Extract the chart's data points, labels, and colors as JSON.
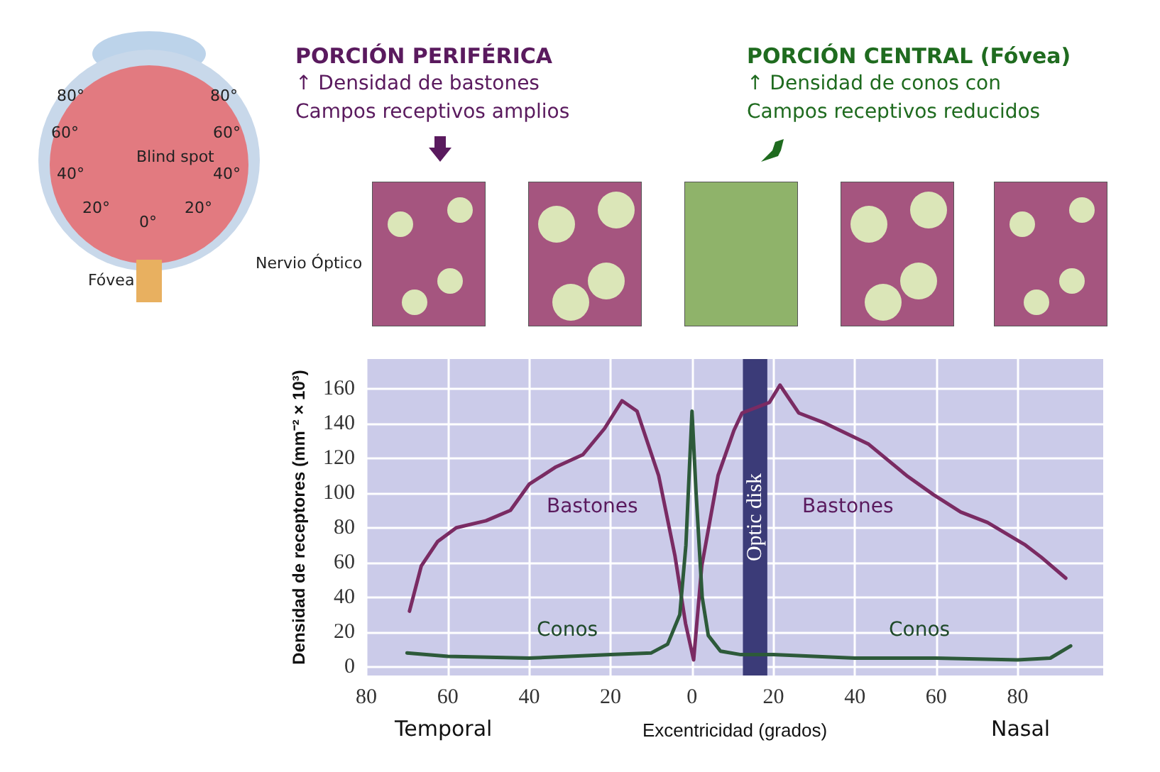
{
  "chart_data": {
    "type": "line",
    "xlabel": "Excentricidad (grados)",
    "ylabel": "Densidad de receptores (mm⁻² × 10³)",
    "xlim": [
      -80,
      101
    ],
    "ylim": [
      -5,
      177
    ],
    "xticks": [
      {
        "value": -80,
        "label": "80"
      },
      {
        "value": -60,
        "label": "60"
      },
      {
        "value": -40,
        "label": "40"
      },
      {
        "value": -20,
        "label": "20"
      },
      0,
      20,
      40,
      60,
      80
    ],
    "yticks": [
      0,
      20,
      40,
      60,
      80,
      100,
      120,
      140,
      160
    ],
    "grid": true,
    "marker": "none",
    "line_style": "solid",
    "series": [
      {
        "color": "#7a2b63",
        "x": [
          -69.4,
          -66.5,
          -62.5,
          -57.9,
          -50.6,
          -44.6,
          -40,
          -33.4,
          -26.8,
          -21.5,
          -17.2,
          -13.5,
          -8.2,
          -4.2,
          -1.6,
          0.4,
          2.4,
          6.4,
          10.3,
          12.3,
          19,
          21.6,
          26.2,
          32.8,
          43.4,
          52.7,
          59.3,
          66,
          72.6,
          81.9,
          85.8,
          91.8
        ],
        "values": [
          32,
          58,
          72,
          80,
          84,
          90,
          105,
          115,
          122,
          137,
          153,
          147,
          110,
          64,
          25,
          4,
          58,
          110,
          136,
          146,
          152,
          162,
          146,
          140,
          128,
          110,
          99,
          89,
          83,
          70,
          63,
          51
        ]
      },
      {
        "color": "#2d5a3a",
        "x": [
          -70,
          -60,
          -40,
          -20,
          -10,
          -6,
          -3,
          -1.5,
          0,
          1,
          2.5,
          4,
          7,
          12,
          20,
          40,
          60,
          80,
          88,
          93
        ],
        "values": [
          8,
          6,
          5,
          7,
          8,
          13,
          30,
          70,
          147,
          100,
          40,
          18,
          9,
          7,
          7,
          5,
          5,
          4,
          5,
          12
        ]
      }
    ],
    "bands": [
      {
        "axis": "x",
        "from": 12.5,
        "to": 18.5,
        "label": "Optic disk",
        "color": "#3b3b78"
      }
    ],
    "annotations": [
      "PORCIÓN PERIFÉRICA",
      "↑ Densidad de bastones",
      "Campos receptivos amplios",
      "PORCIÓN CENTRAL (Fóvea)",
      "↑ Densidad de conos con",
      "Campos receptivos reducidos",
      "80°",
      "80°",
      "60°",
      "60°",
      "40°",
      "40°",
      "20°",
      "20°",
      "0°",
      "Blind spot",
      "Fóvea",
      "Nervio Óptico",
      "Temporal",
      "Nasal",
      "Bastones",
      "Bastones",
      "Conos",
      "Conos"
    ]
  }
}
